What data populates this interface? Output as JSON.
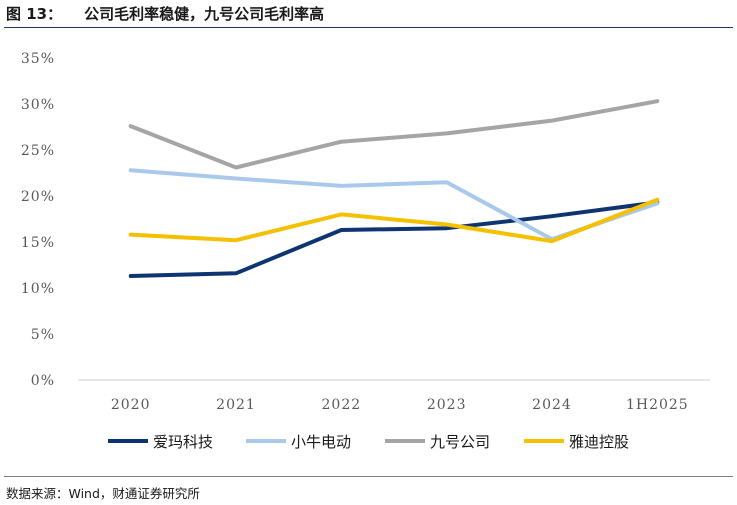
{
  "header": {
    "figure_no": "图 13：",
    "title": "公司毛利率稳健，九号公司毛利率高"
  },
  "source": "数据来源：Wind，财通证券研究所",
  "chart_data": {
    "type": "line",
    "categories": [
      "2020",
      "2021",
      "2022",
      "2023",
      "2024",
      "1H2025"
    ],
    "y_tick_labels": [
      "0%",
      "5%",
      "10%",
      "15%",
      "20%",
      "25%",
      "30%",
      "35%"
    ],
    "ylim": [
      0,
      35
    ],
    "grid": false,
    "legend_position": "bottom",
    "series": [
      {
        "name": "爱玛科技",
        "color": "#0e3572",
        "values": [
          11.3,
          11.6,
          16.3,
          16.5,
          17.8,
          19.3
        ]
      },
      {
        "name": "小牛电动",
        "color": "#a9c8ec",
        "values": [
          22.8,
          21.9,
          21.1,
          21.5,
          15.3,
          19.2
        ]
      },
      {
        "name": "九号公司",
        "color": "#a5a5a5",
        "values": [
          27.6,
          23.1,
          25.9,
          26.8,
          28.2,
          30.3
        ]
      },
      {
        "name": "雅迪控股",
        "color": "#f5c000",
        "values": [
          15.8,
          15.2,
          18.0,
          16.9,
          15.1,
          19.6
        ]
      }
    ]
  }
}
